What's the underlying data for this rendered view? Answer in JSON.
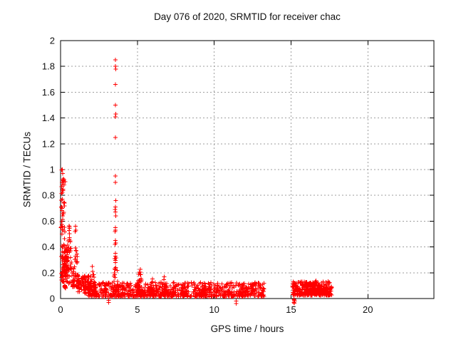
{
  "chart_data": {
    "type": "scatter",
    "title": "Day 076 of 2020, SRMTID for receiver chac",
    "xlabel": "GPS time / hours",
    "ylabel": "SRMTID / TECUs",
    "xlim": [
      0,
      24.3
    ],
    "ylim": [
      0,
      2
    ],
    "xticks": {
      "values": [
        0,
        5,
        10,
        15,
        20
      ],
      "labels": [
        "0",
        "5",
        "10",
        "15",
        "20"
      ]
    },
    "yticks": {
      "values": [
        0,
        0.2,
        0.4,
        0.6,
        0.8,
        1,
        1.2,
        1.4,
        1.6,
        1.8,
        2
      ],
      "labels": [
        "0",
        "0.2",
        "0.4",
        "0.6",
        "0.8",
        "1",
        "1.2",
        "1.4",
        "1.6",
        "1.8",
        "2"
      ]
    },
    "grid": true,
    "legend_position": "none",
    "marker": "plus",
    "marker_size": 7,
    "marker_color": "#ff0000",
    "grid_color": "#9e9e9e",
    "axis_color": "#000000",
    "background": "#ffffff",
    "series": [
      {
        "name": "SRMTID",
        "notable_points": [
          [
            3.58,
            1.85
          ],
          [
            3.56,
            1.8
          ],
          [
            3.6,
            1.78
          ],
          [
            3.57,
            1.66
          ],
          [
            3.56,
            1.5
          ],
          [
            3.59,
            1.43
          ],
          [
            3.57,
            1.41
          ],
          [
            3.58,
            1.25
          ],
          [
            3.56,
            0.95
          ],
          [
            3.57,
            0.9
          ],
          [
            3.6,
            0.76
          ],
          [
            3.58,
            0.71
          ],
          [
            3.55,
            0.69
          ],
          [
            3.57,
            0.67
          ],
          [
            3.59,
            0.64
          ],
          [
            3.56,
            0.55
          ],
          [
            3.58,
            0.53
          ],
          [
            3.55,
            0.52
          ],
          [
            3.57,
            0.45
          ],
          [
            3.6,
            0.43
          ],
          [
            3.54,
            0.42
          ],
          [
            3.56,
            0.35
          ],
          [
            3.58,
            0.33
          ],
          [
            3.53,
            0.31
          ],
          [
            3.57,
            0.28
          ],
          [
            0.12,
            1.0
          ],
          [
            0.14,
            0.97
          ],
          [
            0.13,
            0.92
          ],
          [
            0.15,
            0.88
          ],
          [
            0.11,
            0.84
          ],
          [
            0.97,
            0.56
          ],
          [
            0.95,
            0.52
          ],
          [
            3.12,
            -0.015
          ],
          [
            3.13,
            -0.03
          ],
          [
            11.42,
            -0.02
          ],
          [
            11.44,
            -0.04
          ],
          [
            15.18,
            -0.005
          ],
          [
            15.2,
            -0.02
          ],
          [
            15.22,
            -0.035
          ],
          [
            15.19,
            -0.03
          ],
          [
            15.21,
            -0.01
          ],
          [
            15.23,
            -0.02
          ]
        ],
        "dense_segments": [
          {
            "x0": 0.03,
            "x1": 0.3,
            "n": 60,
            "ymin": 0.15,
            "ymax": 1.0,
            "shape": "uniform"
          },
          {
            "x0": 0.05,
            "x1": 0.5,
            "n": 60,
            "ymin": 0.12,
            "ymax": 0.4,
            "shape": "uniform"
          },
          {
            "x0": 0.25,
            "x1": 0.85,
            "n": 70,
            "ymin": 0.08,
            "ymax": 0.62,
            "shape": "bump"
          },
          {
            "x0": 0.78,
            "x1": 1.2,
            "n": 55,
            "ymin": 0.08,
            "ymax": 0.56,
            "shape": "bump"
          },
          {
            "x0": 1.1,
            "x1": 1.85,
            "n": 80,
            "ymin": 0.04,
            "ymax": 0.18,
            "shape": "uniform"
          },
          {
            "x0": 1.8,
            "x1": 13.3,
            "n": 780,
            "ymin": 0.015,
            "ymax": 0.125,
            "shape": "lowbias"
          },
          {
            "x0": 1.8,
            "x1": 2.35,
            "n": 45,
            "ymin": 0.03,
            "ymax": 0.27,
            "shape": "bump"
          },
          {
            "x0": 3.4,
            "x1": 3.78,
            "n": 32,
            "ymin": 0.04,
            "ymax": 0.4,
            "shape": "bump"
          },
          {
            "x0": 4.9,
            "x1": 5.4,
            "n": 40,
            "ymin": 0.03,
            "ymax": 0.26,
            "shape": "bump"
          },
          {
            "x0": 5.8,
            "x1": 6.15,
            "n": 20,
            "ymin": 0.03,
            "ymax": 0.17,
            "shape": "bump"
          },
          {
            "x0": 6.6,
            "x1": 7.0,
            "n": 24,
            "ymin": 0.03,
            "ymax": 0.21,
            "shape": "bump"
          },
          {
            "x0": 7.85,
            "x1": 8.15,
            "n": 18,
            "ymin": 0.03,
            "ymax": 0.17,
            "shape": "bump"
          },
          {
            "x0": 9.15,
            "x1": 9.45,
            "n": 18,
            "ymin": 0.03,
            "ymax": 0.17,
            "shape": "bump"
          },
          {
            "x0": 10.65,
            "x1": 10.95,
            "n": 14,
            "ymin": 0.03,
            "ymax": 0.14,
            "shape": "bump"
          },
          {
            "x0": 11.55,
            "x1": 11.85,
            "n": 16,
            "ymin": 0.03,
            "ymax": 0.16,
            "shape": "bump"
          },
          {
            "x0": 12.35,
            "x1": 12.65,
            "n": 14,
            "ymin": 0.03,
            "ymax": 0.14,
            "shape": "bump"
          },
          {
            "x0": 15.08,
            "x1": 17.65,
            "n": 340,
            "ymin": 0.025,
            "ymax": 0.135,
            "shape": "lowbias"
          },
          {
            "x0": 15.9,
            "x1": 17.35,
            "n": 60,
            "ymin": 0.04,
            "ymax": 0.15,
            "shape": "bump"
          }
        ],
        "data_gaps_hours": [
          [
            13.3,
            15.08
          ],
          [
            17.65,
            24.3
          ]
        ]
      }
    ]
  }
}
